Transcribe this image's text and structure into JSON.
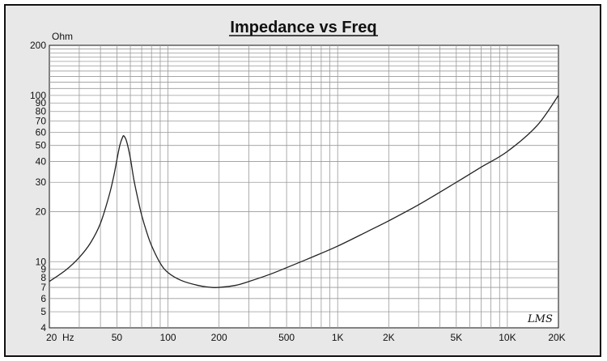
{
  "chart_data": {
    "type": "line",
    "title": "Impedance vs Freq",
    "ylabel": "Ohm",
    "xlabel": "",
    "x_scale": "log",
    "y_scale": "log",
    "xlim": [
      20,
      20000
    ],
    "ylim": [
      4,
      200
    ],
    "grid": true,
    "x_ticks": [
      {
        "value": 20,
        "label": "20"
      },
      {
        "value": 50,
        "label": "50"
      },
      {
        "value": 100,
        "label": "100"
      },
      {
        "value": 200,
        "label": "200"
      },
      {
        "value": 500,
        "label": "500"
      },
      {
        "value": 1000,
        "label": "1K"
      },
      {
        "value": 2000,
        "label": "2K"
      },
      {
        "value": 5000,
        "label": "5K"
      },
      {
        "value": 10000,
        "label": "10K"
      },
      {
        "value": 20000,
        "label": "20K"
      }
    ],
    "x_unit_label": "Hz",
    "y_ticks": [
      {
        "value": 4,
        "label": "4"
      },
      {
        "value": 5,
        "label": "5"
      },
      {
        "value": 6,
        "label": "6"
      },
      {
        "value": 7,
        "label": "7"
      },
      {
        "value": 8,
        "label": "8"
      },
      {
        "value": 9,
        "label": "9"
      },
      {
        "value": 10,
        "label": "10"
      },
      {
        "value": 20,
        "label": "20"
      },
      {
        "value": 30,
        "label": "30"
      },
      {
        "value": 40,
        "label": "40"
      },
      {
        "value": 50,
        "label": "50"
      },
      {
        "value": 60,
        "label": "60"
      },
      {
        "value": 70,
        "label": "70"
      },
      {
        "value": 80,
        "label": "80"
      },
      {
        "value": 90,
        "label": "90"
      },
      {
        "value": 100,
        "label": "100"
      },
      {
        "value": 200,
        "label": "200"
      }
    ],
    "series": [
      {
        "x": [
          20,
          25,
          30,
          35,
          40,
          45,
          48,
          50,
          52,
          54,
          55,
          57,
          60,
          63,
          67,
          70,
          75,
          80,
          90,
          100,
          120,
          150,
          180,
          200,
          250,
          300,
          400,
          500,
          700,
          1000,
          1500,
          2000,
          3000,
          5000,
          7000,
          10000,
          15000,
          20000
        ],
        "values": [
          7.6,
          8.9,
          10.6,
          13.0,
          17.0,
          25.0,
          33.0,
          41.0,
          50.0,
          56.0,
          57.0,
          53.0,
          42.0,
          31.0,
          23.0,
          19.0,
          15.0,
          12.5,
          9.8,
          8.6,
          7.7,
          7.2,
          7.0,
          7.0,
          7.2,
          7.6,
          8.4,
          9.2,
          10.6,
          12.4,
          15.2,
          17.6,
          22.0,
          30.0,
          37.0,
          46.0,
          66.0,
          100.0
        ],
        "color": "#222222"
      }
    ]
  },
  "watermark": "LMS"
}
